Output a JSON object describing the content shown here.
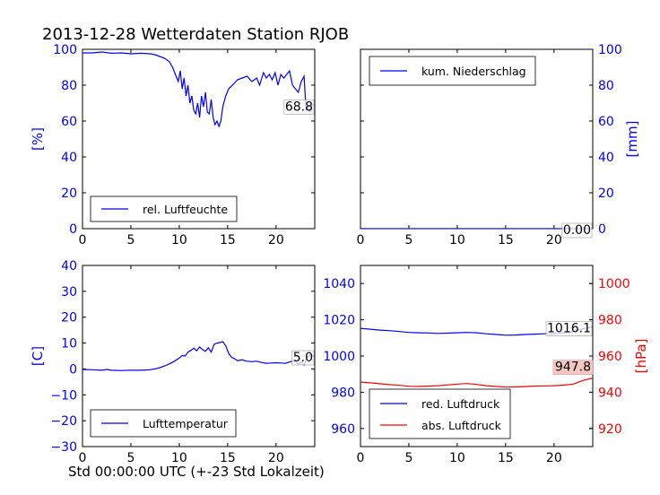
{
  "title": "2013-12-28 Wetterdaten Station RJOB",
  "xlabel": "Std 00:00:00 UTC (+-23 Std Lokalzeit)",
  "colors": {
    "blue": "#0000ff",
    "red": "#ff0000",
    "black": "#000000",
    "label_box": "#f4c7c3"
  },
  "chart_data": [
    {
      "type": "line",
      "ylabel": "[%]",
      "xlim": [
        0,
        24
      ],
      "ylim": [
        0,
        100
      ],
      "xticks": [
        0,
        5,
        10,
        15,
        20
      ],
      "yticks": [
        0,
        20,
        40,
        60,
        80,
        100
      ],
      "legend": "bottom-left",
      "last_value_label": "68.8",
      "series": [
        {
          "name": "rel. Luftfeuchte",
          "color": "#0000ff",
          "x": [
            0,
            1,
            2,
            3,
            4,
            5,
            6,
            7,
            7.5,
            8,
            8.5,
            9,
            9.3,
            9.6,
            9.9,
            10.1,
            10.3,
            10.5,
            10.7,
            10.9,
            11.1,
            11.3,
            11.5,
            11.7,
            11.9,
            12.1,
            12.3,
            12.5,
            12.7,
            12.9,
            13.1,
            13.3,
            13.5,
            13.7,
            13.9,
            14.1,
            14.3,
            14.5,
            14.8,
            15.1,
            15.5,
            16,
            16.5,
            17,
            17.5,
            18,
            18.3,
            18.7,
            19,
            19.3,
            19.6,
            19.9,
            20.2,
            20.5,
            20.8,
            21.1,
            21.4,
            21.7,
            22,
            22.3,
            22.6,
            22.9,
            23.1,
            23.3,
            23.5,
            23.7,
            23.9
          ],
          "y": [
            98,
            98,
            98.5,
            97.8,
            98,
            97.5,
            97.8,
            97.5,
            97,
            96,
            95,
            93,
            90,
            86,
            82,
            88,
            78,
            84,
            74,
            80,
            70,
            74,
            66,
            64,
            70,
            62,
            74,
            68,
            76,
            65,
            64,
            72,
            62,
            58,
            60,
            57,
            60,
            68,
            74,
            78,
            80,
            83,
            84,
            85,
            82,
            84,
            80,
            87,
            84,
            86,
            83,
            87,
            80,
            86,
            84,
            86,
            88,
            80,
            78,
            76,
            82,
            85,
            66,
            68,
            65,
            69,
            68.8
          ]
        }
      ]
    },
    {
      "type": "line",
      "ylabel": "[mm]",
      "xlim": [
        0,
        24
      ],
      "ylim": [
        0,
        100
      ],
      "xticks": [
        0,
        5,
        10,
        15,
        20
      ],
      "yticks": [
        0,
        20,
        40,
        60,
        80,
        100
      ],
      "legend": "top-left",
      "last_value_label": "0.00",
      "series": [
        {
          "name": "kum. Niederschlag",
          "color": "#0000ff",
          "x": [
            0,
            24
          ],
          "y": [
            0,
            0
          ]
        }
      ]
    },
    {
      "type": "line",
      "ylabel": "[C]",
      "xlim": [
        0,
        24
      ],
      "ylim": [
        -30,
        40
      ],
      "xticks": [
        0,
        5,
        10,
        15,
        20
      ],
      "yticks": [
        -30,
        -20,
        -10,
        0,
        10,
        20,
        30,
        40
      ],
      "legend": "bottom-left",
      "last_value_label": "5.0",
      "series": [
        {
          "name": "Lufttemperatur",
          "color": "#0000ff",
          "x": [
            0,
            1,
            2,
            2.5,
            3,
            4,
            5,
            6,
            7,
            7.5,
            8,
            8.5,
            9,
            9.5,
            10,
            10.3,
            10.6,
            10.9,
            11.2,
            11.5,
            11.8,
            12.1,
            12.4,
            12.7,
            13,
            13.3,
            13.6,
            13.9,
            14.2,
            14.5,
            14.8,
            15.1,
            15.4,
            15.7,
            16,
            16.5,
            17,
            17.5,
            18,
            18.5,
            19,
            19.5,
            20,
            20.5,
            21,
            21.5,
            22,
            22.3,
            22.6,
            22.9,
            23.2,
            23.5,
            23.8,
            24
          ],
          "y": [
            -0.2,
            -0.3,
            -0.5,
            -0.2,
            -0.5,
            -0.6,
            -0.5,
            -0.5,
            -0.3,
            0,
            0.5,
            1.2,
            2,
            3,
            4.2,
            5.2,
            5,
            6.5,
            7.2,
            8,
            7,
            8.5,
            7.5,
            6.8,
            8.2,
            6.5,
            9.5,
            10,
            10.2,
            10.5,
            9,
            6,
            4.5,
            4,
            3.2,
            3.5,
            3,
            2.8,
            3,
            2.5,
            2.2,
            2.3,
            2.4,
            2.3,
            2.2,
            2.8,
            3.2,
            1.8,
            2.6,
            1.5,
            4.3,
            5.5,
            5.2,
            5.0
          ]
        }
      ]
    },
    {
      "type": "line",
      "xlim": [
        0,
        24
      ],
      "ylim": [
        950,
        1050
      ],
      "ylim_right": [
        910,
        1010
      ],
      "ylabel_right": "[hPa]",
      "xticks": [
        0,
        5,
        10,
        15,
        20
      ],
      "yticks": [
        960,
        980,
        1000,
        1020,
        1040
      ],
      "yticks_right": [
        920,
        940,
        960,
        980,
        1000
      ],
      "legend": "bottom-left",
      "last_value_label": "1016.1",
      "last_value_label_right": "947.8",
      "series": [
        {
          "name": "red. Luftdruck",
          "color": "#0000ff",
          "axis": "left",
          "x": [
            0,
            1,
            2,
            3,
            4,
            5,
            6,
            7,
            8,
            9,
            10,
            11,
            12,
            13,
            14,
            15,
            16,
            17,
            18,
            19,
            20,
            21,
            22,
            23,
            24
          ],
          "y": [
            1015.3,
            1014.8,
            1014.3,
            1014,
            1013.5,
            1013,
            1012.8,
            1012.7,
            1012.5,
            1012.6,
            1012.8,
            1013,
            1012.8,
            1012.3,
            1011.9,
            1011.5,
            1011.6,
            1011.9,
            1012.1,
            1012.3,
            1012.4,
            1012.8,
            1013.5,
            1015,
            1016.1
          ]
        },
        {
          "name": "abs. Luftdruck",
          "color": "#ff0000",
          "axis": "right",
          "x": [
            0,
            1,
            2,
            3,
            4,
            5,
            6,
            7,
            8,
            9,
            10,
            11,
            12,
            13,
            14,
            15,
            16,
            17,
            18,
            19,
            20,
            21,
            22,
            23,
            24
          ],
          "y": [
            945.6,
            945.2,
            944.7,
            944.2,
            943.8,
            943.3,
            943.2,
            943.4,
            943.6,
            944,
            944.5,
            944.8,
            944.3,
            943.6,
            943.2,
            942.8,
            942.9,
            943.1,
            943.4,
            943.5,
            943.6,
            943.9,
            944.5,
            946.5,
            947.8
          ]
        }
      ]
    }
  ]
}
